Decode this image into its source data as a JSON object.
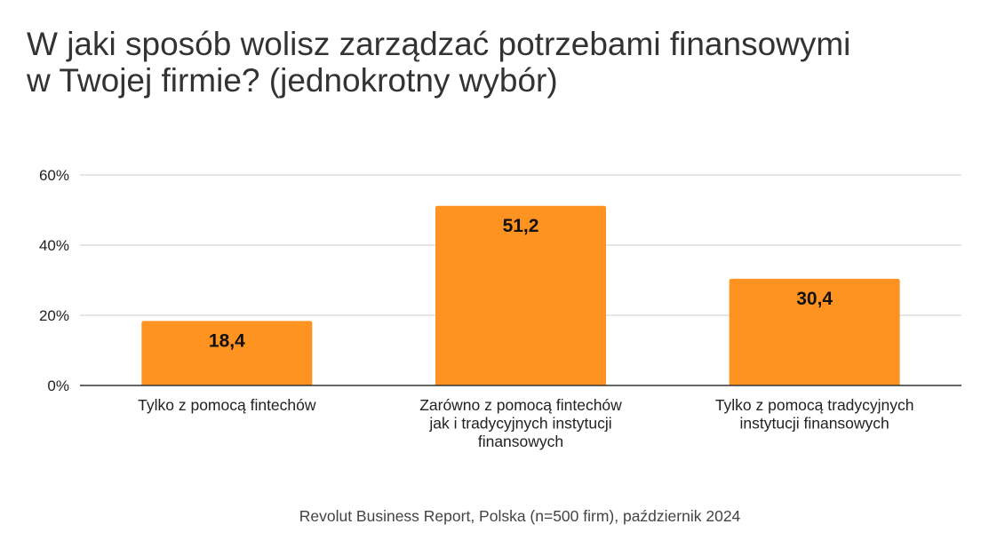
{
  "chart_data": {
    "type": "bar",
    "title_lines": [
      "W jaki sposób wolisz zarządzać potrzebami finansowymi",
      "w Twojej firmie? (jednokrotny wybór)"
    ],
    "categories": [
      [
        "Tylko z pomocą fintechów"
      ],
      [
        "Zarówno z pomocą fintechów",
        "jak i tradycyjnych instytucji",
        "finansowych"
      ],
      [
        "Tylko z pomocą tradycyjnych",
        "instytucji finansowych"
      ]
    ],
    "values": [
      18.4,
      51.2,
      30.4
    ],
    "value_labels": [
      "18,4",
      "51,2",
      "30,4"
    ],
    "y_ticks": [
      0,
      20,
      40,
      60
    ],
    "y_tick_labels": [
      "0%",
      "20%",
      "40%",
      "60%"
    ],
    "ylim": [
      0,
      60
    ],
    "bar_color": "#ff9322",
    "grid": true,
    "legend": "none",
    "footer": "Revolut Business Report, Polska (n=500 firm), październik 2024"
  }
}
